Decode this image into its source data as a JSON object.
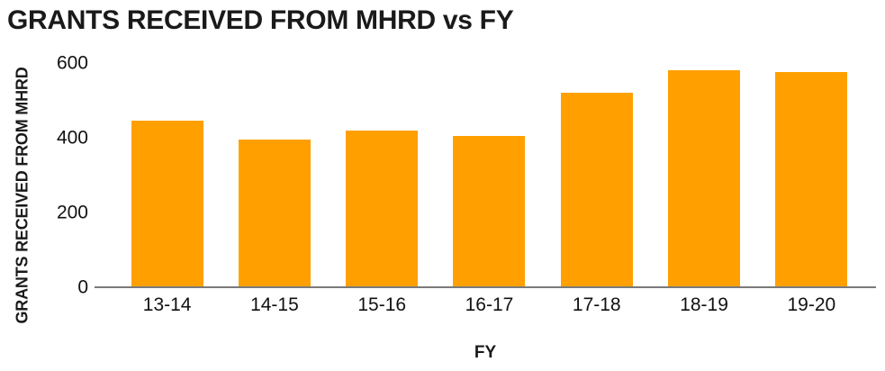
{
  "chart_data": {
    "type": "bar",
    "title": "GRANTS RECEIVED FROM MHRD vs FY",
    "xlabel": "FY",
    "ylabel": "GRANTS RECEIVED FROM MHRD",
    "categories": [
      "13-14",
      "14-15",
      "15-16",
      "16-17",
      "17-18",
      "18-19",
      "19-20"
    ],
    "values": [
      445,
      395,
      420,
      405,
      520,
      580,
      575
    ],
    "ylim": [
      0,
      600
    ],
    "yticks": [
      0,
      200,
      400,
      600
    ],
    "grid": false,
    "legend": "none",
    "bar_color": "#FFA000"
  },
  "colors": {
    "bar": "#FFA000",
    "axis_line": "#7a7a7a",
    "text": "#1a1a1a",
    "background": "#ffffff"
  }
}
